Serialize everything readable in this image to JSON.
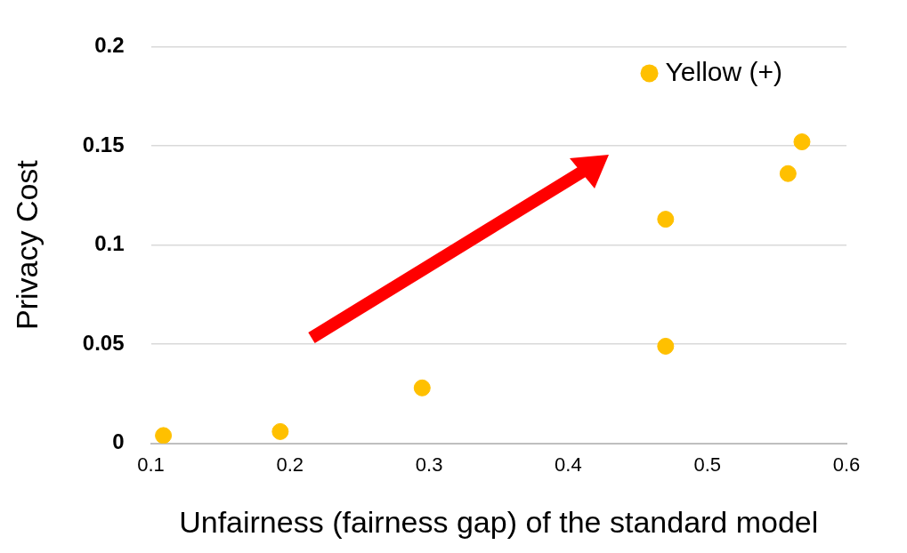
{
  "chart_data": {
    "type": "scatter",
    "xlabel": "Unfairness (fairness gap) of the standard model",
    "ylabel": "Privacy Cost",
    "series": [
      {
        "name": "Yellow (+)",
        "color": "#ffc000",
        "x": [
          0.109,
          0.193,
          0.295,
          0.47,
          0.47,
          0.558,
          0.568
        ],
        "values": [
          0.004,
          0.006,
          0.028,
          0.113,
          0.049,
          0.136,
          0.152
        ]
      }
    ],
    "xlim": [
      0.1,
      0.6
    ],
    "xticks": [
      0.1,
      0.2,
      0.3,
      0.4,
      0.5,
      0.6
    ],
    "ylim": [
      0,
      0.2
    ],
    "yticks": [
      0,
      0.05,
      0.1,
      0.15,
      0.2
    ],
    "grid": "y",
    "legend": "top right",
    "marker": "circle"
  }
}
